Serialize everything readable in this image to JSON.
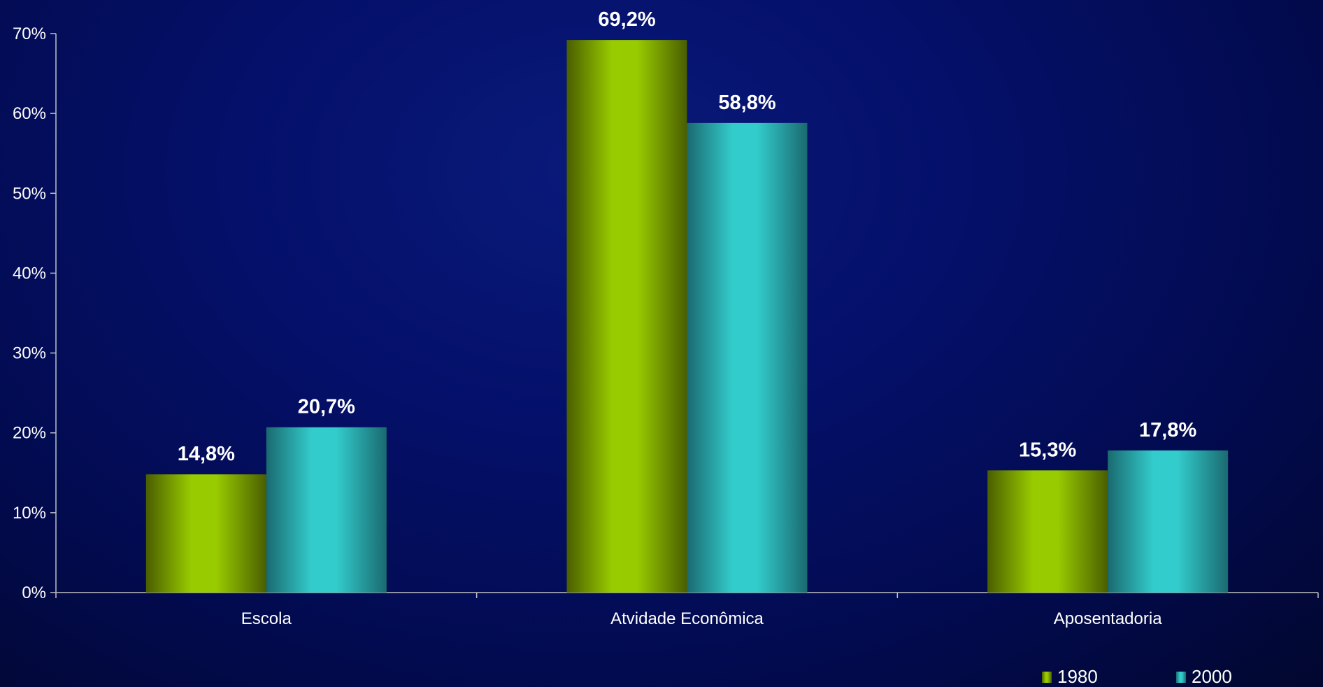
{
  "chart_data": {
    "type": "bar",
    "categories": [
      "Escola",
      "Atvidade Econômica",
      "Aposentadoria"
    ],
    "series": [
      {
        "name": "1980",
        "values": [
          14.8,
          69.2,
          15.3
        ],
        "labels": [
          "14,8%",
          "69,2%",
          "15,3%"
        ],
        "color": "#99cc00",
        "dark_color": "#4a5e00"
      },
      {
        "name": "2000",
        "values": [
          20.7,
          58.8,
          17.8
        ],
        "labels": [
          "20,7%",
          "58,8%",
          "17,8%"
        ],
        "color": "#33cccc",
        "dark_color": "#1a6a70"
      }
    ],
    "yticks": [
      0,
      10,
      20,
      30,
      40,
      50,
      60,
      70
    ],
    "ytick_labels": [
      "0%",
      "10%",
      "20%",
      "30%",
      "40%",
      "50%",
      "60%",
      "70%"
    ],
    "ylim": [
      0,
      70
    ],
    "title": "",
    "xlabel": "",
    "ylabel": "",
    "grid": false,
    "legend_position": "bottom-right",
    "axis_color": "#c0c0c0",
    "text_color": "#ffffff"
  }
}
